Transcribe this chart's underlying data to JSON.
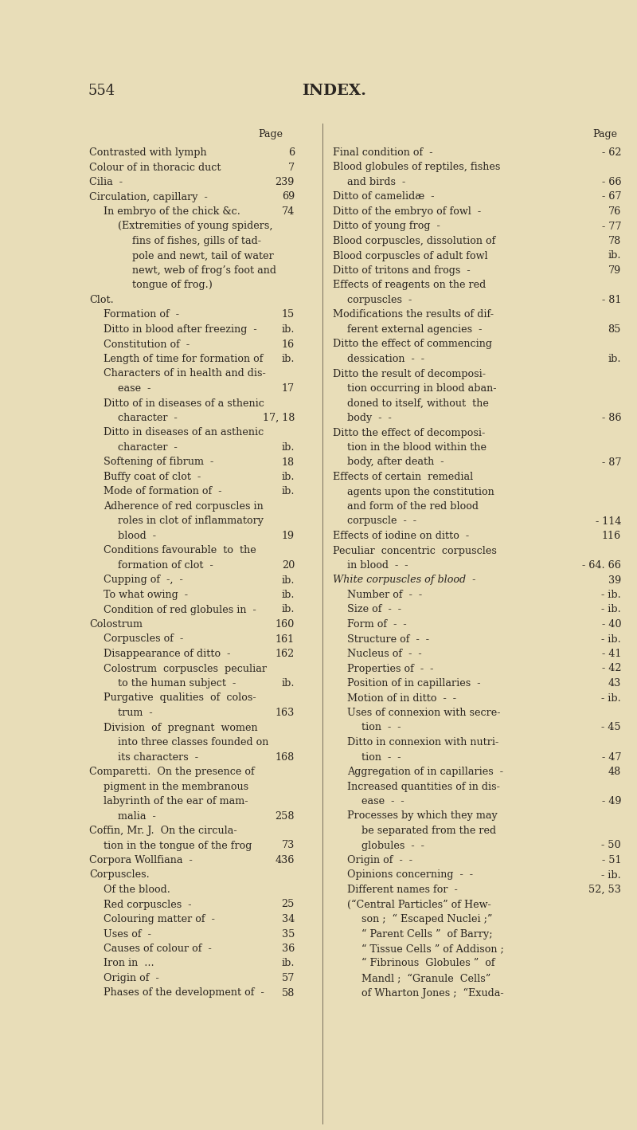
{
  "page_number": "554",
  "title": "INDEX.",
  "bg_color": "#e8ddb8",
  "text_color": "#2a2520",
  "left_column": [
    {
      "text": "Contrasted with lymph",
      "page": "6",
      "indent": 0
    },
    {
      "text": "Colour of in thoracic duct",
      "page": "7",
      "indent": 0
    },
    {
      "text": "Cilia  -",
      "page": "239",
      "indent": 0,
      "smallcaps": true
    },
    {
      "text": "Circulation, capillary  -",
      "page": "69",
      "indent": 0,
      "smallcaps": true
    },
    {
      "text": "In embryo of the chick &c.",
      "page": "74",
      "indent": 1
    },
    {
      "text": "(Extremities of young spiders,",
      "page": "",
      "indent": 2
    },
    {
      "text": "fins of fishes, gills of tad-",
      "page": "",
      "indent": 3
    },
    {
      "text": "pole and newt, tail of water",
      "page": "",
      "indent": 3
    },
    {
      "text": "newt, web of frog’s foot and",
      "page": "",
      "indent": 3
    },
    {
      "text": "tongue of frog.)",
      "page": "",
      "indent": 3
    },
    {
      "text": "Clot.",
      "page": "",
      "indent": 0,
      "smallcaps": true
    },
    {
      "text": "Formation of  -",
      "page": "15",
      "indent": 1
    },
    {
      "text": "Ditto in blood after freezing  -",
      "page": "ib.",
      "indent": 1
    },
    {
      "text": "Constitution of  -",
      "page": "16",
      "indent": 1
    },
    {
      "text": "Length of time for formation of",
      "page": "ib.",
      "indent": 1
    },
    {
      "text": "Characters of in health and dis-",
      "page": "",
      "indent": 1
    },
    {
      "text": "ease  -",
      "page": "17",
      "indent": 2
    },
    {
      "text": "Ditto of in diseases of a sthenic",
      "page": "",
      "indent": 1
    },
    {
      "text": "character  -",
      "page": "17, 18",
      "indent": 2
    },
    {
      "text": "Ditto in diseases of an asthenic",
      "page": "",
      "indent": 1
    },
    {
      "text": "character  -",
      "page": "ib.",
      "indent": 2
    },
    {
      "text": "Softening of fibrum  -",
      "page": "18",
      "indent": 1
    },
    {
      "text": "Buffy coat of clot  -",
      "page": "ib.",
      "indent": 1
    },
    {
      "text": "Mode of formation of  -",
      "page": "ib.",
      "indent": 1
    },
    {
      "text": "Adherence of red corpuscles in",
      "page": "",
      "indent": 1
    },
    {
      "text": "roles in clot of inflammatory",
      "page": "",
      "indent": 2
    },
    {
      "text": "blood  -",
      "page": "19",
      "indent": 2
    },
    {
      "text": "Conditions favourable  to  the",
      "page": "",
      "indent": 1
    },
    {
      "text": "formation of clot  -",
      "page": "20",
      "indent": 2
    },
    {
      "text": "Cupping of  -,  -",
      "page": "ib.",
      "indent": 1
    },
    {
      "text": "To what owing  -",
      "page": "ib.",
      "indent": 1
    },
    {
      "text": "Condition of red globules in  -",
      "page": "ib.",
      "indent": 1
    },
    {
      "text": "Colostrum",
      "page": "160",
      "indent": 0,
      "smallcaps": true
    },
    {
      "text": "Corpuscles of  -",
      "page": "161",
      "indent": 1
    },
    {
      "text": "Disappearance of ditto  -",
      "page": "162",
      "indent": 1
    },
    {
      "text": "Colostrum  corpuscles  peculiar",
      "page": "",
      "indent": 1
    },
    {
      "text": "to the human subject  -",
      "page": "ib.",
      "indent": 2
    },
    {
      "text": "Purgative  qualities  of  colos-",
      "page": "",
      "indent": 1
    },
    {
      "text": "trum  -",
      "page": "163",
      "indent": 2
    },
    {
      "text": "Division  of  pregnant  women",
      "page": "",
      "indent": 1
    },
    {
      "text": "into three classes founded on",
      "page": "",
      "indent": 2
    },
    {
      "text": "its characters  -",
      "page": "168",
      "indent": 2
    },
    {
      "text": "Comparetti.  On the presence of",
      "page": "",
      "indent": 0,
      "smallcaps": true
    },
    {
      "text": "pigment in the membranous",
      "page": "",
      "indent": 1
    },
    {
      "text": "labyrinth of the ear of mam-",
      "page": "",
      "indent": 1
    },
    {
      "text": "malia  -",
      "page": "258",
      "indent": 2
    },
    {
      "text": "Coffin, Mr. J.  On the circula-",
      "page": "",
      "indent": 0,
      "smallcaps": true
    },
    {
      "text": "tion in the tongue of the frog",
      "page": "73",
      "indent": 1
    },
    {
      "text": "Corpora Wollfiana  -",
      "page": "436",
      "indent": 0,
      "smallcaps": true
    },
    {
      "text": "Corpuscles.",
      "page": "",
      "indent": 0,
      "smallcaps": true
    },
    {
      "text": "Of the blood.",
      "page": "",
      "indent": 1
    },
    {
      "text": "Red corpuscles  -",
      "page": "25",
      "indent": 1
    },
    {
      "text": "Colouring matter of  -",
      "page": "34",
      "indent": 1
    },
    {
      "text": "Uses of  -",
      "page": "35",
      "indent": 1
    },
    {
      "text": "Causes of colour of  -",
      "page": "36",
      "indent": 1
    },
    {
      "text": "Iron in  ...",
      "page": "ib.",
      "indent": 1
    },
    {
      "text": "Origin of  -",
      "page": "57",
      "indent": 1
    },
    {
      "text": "Phases of the development of  -",
      "page": "58",
      "indent": 1
    }
  ],
  "right_column": [
    {
      "text": "Final condition of  -",
      "page": "- 62",
      "indent": 0
    },
    {
      "text": "Blood globules of reptiles, fishes",
      "page": "",
      "indent": 0
    },
    {
      "text": "and birds  -",
      "page": "- 66",
      "indent": 1
    },
    {
      "text": "Ditto of camelidæ  -",
      "page": "- 67",
      "indent": 0
    },
    {
      "text": "Ditto of the embryo of fowl  -",
      "page": "76",
      "indent": 0
    },
    {
      "text": "Ditto of young frog  -",
      "page": "- 77",
      "indent": 0
    },
    {
      "text": "Blood corpuscles, dissolution of",
      "page": "78",
      "indent": 0
    },
    {
      "text": "Blood corpuscles of adult fowl",
      "page": "ib.",
      "indent": 0
    },
    {
      "text": "Ditto of tritons and frogs  -",
      "page": "79",
      "indent": 0
    },
    {
      "text": "Effects of reagents on the red",
      "page": "",
      "indent": 0
    },
    {
      "text": "corpuscles  -",
      "page": "- 81",
      "indent": 1
    },
    {
      "text": "Modifications the results of dif-",
      "page": "",
      "indent": 0
    },
    {
      "text": "ferent external agencies  -",
      "page": "85",
      "indent": 1
    },
    {
      "text": "Ditto the effect of commencing",
      "page": "",
      "indent": 0
    },
    {
      "text": "dessication  -  -",
      "page": "ib.",
      "indent": 1
    },
    {
      "text": "Ditto the result of decomposi-",
      "page": "",
      "indent": 0
    },
    {
      "text": "tion occurring in blood aban-",
      "page": "",
      "indent": 1
    },
    {
      "text": "doned to itself, without  the",
      "page": "",
      "indent": 1
    },
    {
      "text": "body  -  -",
      "page": "- 86",
      "indent": 1
    },
    {
      "text": "Ditto the effect of decomposi-",
      "page": "",
      "indent": 0
    },
    {
      "text": "tion in the blood within the",
      "page": "",
      "indent": 1
    },
    {
      "text": "body, after death  -",
      "page": "- 87",
      "indent": 1
    },
    {
      "text": "Effects of certain  remedial",
      "page": "",
      "indent": 0
    },
    {
      "text": "agents upon the constitution",
      "page": "",
      "indent": 1
    },
    {
      "text": "and form of the red blood",
      "page": "",
      "indent": 1
    },
    {
      "text": "corpuscle  -  -",
      "page": "- 114",
      "indent": 1
    },
    {
      "text": "Effects of iodine on ditto  -",
      "page": "116",
      "indent": 0
    },
    {
      "text": "Peculiar  concentric  corpuscles",
      "page": "",
      "indent": 0
    },
    {
      "text": "in blood  -  -",
      "page": "- 64. 66",
      "indent": 1
    },
    {
      "text": "White corpuscles of blood  -",
      "page": "39",
      "indent": 0,
      "italic": true
    },
    {
      "text": "Number of  -  -",
      "page": "- ib.",
      "indent": 1
    },
    {
      "text": "Size of  -  -",
      "page": "- ib.",
      "indent": 1
    },
    {
      "text": "Form of  -  -",
      "page": "- 40",
      "indent": 1
    },
    {
      "text": "Structure of  -  -",
      "page": "- ib.",
      "indent": 1
    },
    {
      "text": "Nucleus of  -  -",
      "page": "- 41",
      "indent": 1
    },
    {
      "text": "Properties of  -  -",
      "page": "- 42",
      "indent": 1
    },
    {
      "text": "Position of in capillaries  -",
      "page": "43",
      "indent": 1
    },
    {
      "text": "Motion of in ditto  -  -",
      "page": "- ib.",
      "indent": 1
    },
    {
      "text": "Uses of connexion with secre-",
      "page": "",
      "indent": 1
    },
    {
      "text": "tion  -  -",
      "page": "- 45",
      "indent": 2
    },
    {
      "text": "Ditto in connexion with nutri-",
      "page": "",
      "indent": 1
    },
    {
      "text": "tion  -  -",
      "page": "- 47",
      "indent": 2
    },
    {
      "text": "Aggregation of in capillaries  -",
      "page": "48",
      "indent": 1
    },
    {
      "text": "Increased quantities of in dis-",
      "page": "",
      "indent": 1
    },
    {
      "text": "ease  -  -",
      "page": "- 49",
      "indent": 2
    },
    {
      "text": "Processes by which they may",
      "page": "",
      "indent": 1
    },
    {
      "text": "be separated from the red",
      "page": "",
      "indent": 2
    },
    {
      "text": "globules  -  -",
      "page": "- 50",
      "indent": 2
    },
    {
      "text": "Origin of  -  -",
      "page": "- 51",
      "indent": 1
    },
    {
      "text": "Opinions concerning  -  -",
      "page": "- ib.",
      "indent": 1
    },
    {
      "text": "Different names for  -",
      "page": "52, 53",
      "indent": 1
    },
    {
      "text": "(“Central Particles” of Hew-",
      "page": "",
      "indent": 1
    },
    {
      "text": "son ;  “ Escaped Nuclei ;”",
      "page": "",
      "indent": 2
    },
    {
      "text": "“ Parent Cells ”  of Barry;",
      "page": "",
      "indent": 2
    },
    {
      "text": "“ Tissue Cells ” of Addison ;",
      "page": "",
      "indent": 2
    },
    {
      "text": "“ Fibrinous  Globules ”  of",
      "page": "",
      "indent": 2
    },
    {
      "text": "Mandl ;  “Granule  Cells”",
      "page": "",
      "indent": 2
    },
    {
      "text": "of Wharton Jones ;  “Exuda-",
      "page": "",
      "indent": 2
    }
  ]
}
